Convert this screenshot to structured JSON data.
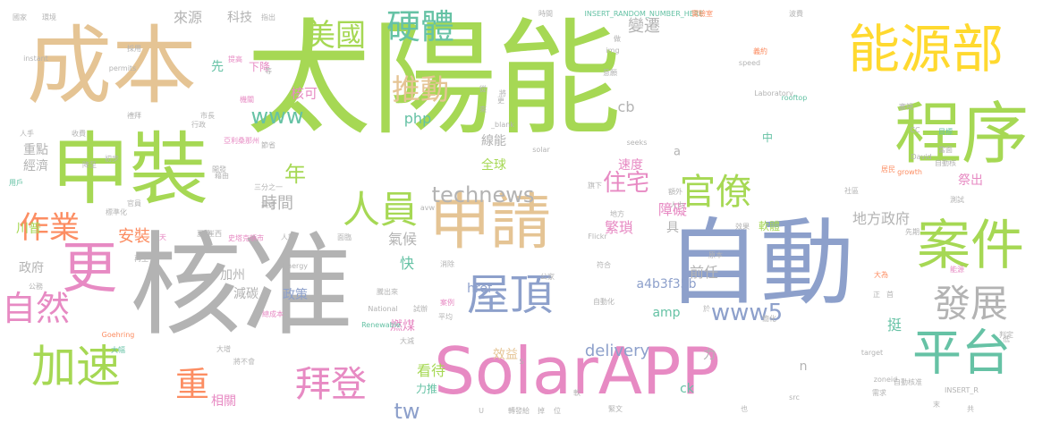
{
  "palette": {
    "green": "#a6d854",
    "gray": "#b3b3b3",
    "tan": "#e5c494",
    "pink": "#e78ac3",
    "blue": "#8da0cb",
    "orange": "#fc8d62",
    "yellow": "#ffd92f",
    "teal": "#66c2a5"
  },
  "words": [
    {
      "text": "太陽能",
      "color": "green",
      "rot": 0
    },
    {
      "text": "核准",
      "color": "gray",
      "rot": 0
    },
    {
      "text": "成本",
      "color": "tan",
      "rot": 0
    },
    {
      "text": "自動",
      "color": "blue",
      "rot": 0
    },
    {
      "text": "程序",
      "color": "green",
      "rot": 0
    },
    {
      "text": "申裝",
      "color": "green",
      "rot": 0
    },
    {
      "text": "SolarAPP",
      "color": "pink",
      "rot": 0
    },
    {
      "text": "能源部",
      "color": "yellow",
      "rot": 0
    },
    {
      "text": "申請",
      "color": "tan",
      "rot": 0
    },
    {
      "text": "更",
      "color": "pink",
      "rot": 0
    },
    {
      "text": "案件",
      "color": "green",
      "rot": 0
    },
    {
      "text": "屋頂",
      "color": "blue",
      "rot": 0
    },
    {
      "text": "平台",
      "color": "teal",
      "rot": 0
    },
    {
      "text": "加速",
      "color": "green",
      "rot": 0
    },
    {
      "text": "人員",
      "color": "green",
      "rot": 0
    },
    {
      "text": "發展",
      "color": "gray",
      "rot": 0
    },
    {
      "text": "自然",
      "color": "pink",
      "rot": 0
    },
    {
      "text": "拜登",
      "color": "pink",
      "rot": 0
    },
    {
      "text": "官僚",
      "color": "green",
      "rot": 0
    },
    {
      "text": "硬體",
      "color": "teal",
      "rot": 0
    },
    {
      "text": "美國",
      "color": "green",
      "rot": 0
    },
    {
      "text": "推動",
      "color": "tan",
      "rot": 0
    },
    {
      "text": "technews",
      "color": "gray",
      "rot": 0
    },
    {
      "text": "www",
      "color": "teal",
      "rot": 0
    },
    {
      "text": "www5",
      "color": "blue",
      "rot": 0
    },
    {
      "text": "重",
      "color": "orange",
      "rot": 0
    },
    {
      "text": "作業",
      "color": "orange",
      "rot": 0
    },
    {
      "text": "住宅",
      "color": "pink",
      "rot": 0
    },
    {
      "text": "年",
      "color": "green",
      "rot": 0
    },
    {
      "text": "時間",
      "color": "gray",
      "rot": 0
    },
    {
      "text": "地方政府",
      "color": "gray",
      "rot": 0
    },
    {
      "text": "變遷",
      "color": "gray",
      "rot": 0
    },
    {
      "text": "來源",
      "color": "gray",
      "rot": 0
    },
    {
      "text": "科技",
      "color": "gray",
      "rot": 0
    },
    {
      "text": "核可",
      "color": "pink",
      "rot": 0
    },
    {
      "text": "下降",
      "color": "pink",
      "rot": 0
    },
    {
      "text": "先",
      "color": "teal",
      "rot": 0
    },
    {
      "text": "php",
      "color": "teal",
      "rot": 0
    },
    {
      "text": "cb",
      "color": "gray",
      "rot": 0
    },
    {
      "text": "線能",
      "color": "gray",
      "rot": 0
    },
    {
      "text": "全球",
      "color": "green",
      "rot": 0
    },
    {
      "text": "速度",
      "color": "pink",
      "rot": 0
    },
    {
      "text": "障礙",
      "color": "pink",
      "rot": 0
    },
    {
      "text": "中",
      "color": "teal",
      "rot": 0
    },
    {
      "text": "a",
      "color": "gray",
      "rot": 0
    },
    {
      "text": "繁瑣",
      "color": "pink",
      "rot": 0
    },
    {
      "text": "具",
      "color": "gray",
      "rot": 0
    },
    {
      "text": "a4b3f35b",
      "color": "blue",
      "rot": 0
    },
    {
      "text": "amp",
      "color": "teal",
      "rot": 0
    },
    {
      "text": "前任",
      "color": "gray",
      "rot": 0
    },
    {
      "text": "挺",
      "color": "teal",
      "rot": 0
    },
    {
      "text": "安裝",
      "color": "orange",
      "rot": 0
    },
    {
      "text": "氣候",
      "color": "gray",
      "rot": 0
    },
    {
      "text": "快",
      "color": "teal",
      "rot": 0
    },
    {
      "text": "href",
      "color": "blue",
      "rot": 0
    },
    {
      "text": "政策",
      "color": "blue",
      "rot": 0
    },
    {
      "text": "燃煤",
      "color": "pink",
      "rot": 0
    },
    {
      "text": "delivery",
      "color": "blue",
      "rot": 0
    },
    {
      "text": "效益",
      "color": "tan",
      "rot": 0
    },
    {
      "text": "力",
      "color": "gray",
      "rot": 0
    },
    {
      "text": "ck",
      "color": "teal",
      "rot": 0
    },
    {
      "text": "n",
      "color": "gray",
      "rot": 0
    },
    {
      "text": "看待",
      "color": "green",
      "rot": 0
    },
    {
      "text": "tw",
      "color": "blue",
      "rot": 0
    },
    {
      "text": "力推",
      "color": "teal",
      "rot": 0
    },
    {
      "text": "加州",
      "color": "gray",
      "rot": 0
    },
    {
      "text": "相關",
      "color": "pink",
      "rot": 0
    },
    {
      "text": "減碳",
      "color": "gray",
      "rot": 0
    },
    {
      "text": "政府",
      "color": "gray",
      "rot": 0
    },
    {
      "text": "川普",
      "color": "green",
      "rot": 0
    },
    {
      "text": "經濟",
      "color": "gray",
      "rot": 0
    },
    {
      "text": "重點",
      "color": "gray",
      "rot": 0
    },
    {
      "text": "軟體",
      "color": "green",
      "rot": 0
    },
    {
      "text": "祭出",
      "color": "pink",
      "rot": 0
    },
    {
      "text": "國家",
      "color": "gray",
      "rot": 0
    },
    {
      "text": "環境",
      "color": "gray",
      "rot": 0
    },
    {
      "text": "等",
      "color": "gray",
      "rot": 0
    },
    {
      "text": "指出",
      "color": "gray",
      "rot": 0
    },
    {
      "text": "時間",
      "color": "gray",
      "rot": 0
    },
    {
      "text": "INSERT_RANDOM_NUMBER_HERE",
      "color": "teal",
      "rot": 0
    },
    {
      "text": "實驗室",
      "color": "orange",
      "rot": 0
    },
    {
      "text": "波費",
      "color": "gray",
      "rot": 0
    },
    {
      "text": "instant",
      "color": "gray",
      "rot": 0
    },
    {
      "text": "採用",
      "color": "gray",
      "rot": 0
    },
    {
      "text": "提高",
      "color": "pink",
      "rot": 0
    },
    {
      "text": "機關",
      "color": "pink",
      "rot": 0
    },
    {
      "text": "img",
      "color": "gray",
      "rot": 0
    },
    {
      "text": "speed",
      "color": "gray",
      "rot": 0
    },
    {
      "text": "義約",
      "color": "orange",
      "rot": 0
    },
    {
      "text": "意願",
      "color": "gray",
      "rot": 0
    },
    {
      "text": "permits",
      "color": "gray",
      "rot": 0
    },
    {
      "text": "Laboratory",
      "color": "gray",
      "rot": 0
    },
    {
      "text": "rooftop",
      "color": "teal",
      "rot": 0
    },
    {
      "text": "審視",
      "color": "gray",
      "rot": 0
    },
    {
      "text": "人手",
      "color": "gray",
      "rot": 0
    },
    {
      "text": "收費",
      "color": "gray",
      "rot": 0
    },
    {
      "text": "禮拜",
      "color": "gray",
      "rot": 0
    },
    {
      "text": "市長",
      "color": "gray",
      "rot": 0
    },
    {
      "text": "亞利桑那州",
      "color": "pink",
      "rot": 0
    },
    {
      "text": "行政",
      "color": "gray",
      "rot": 0
    },
    {
      "text": "節省",
      "color": "gray",
      "rot": 0
    },
    {
      "text": "solar",
      "color": "gray",
      "rot": 0
    },
    {
      "text": "_blank",
      "color": "gray",
      "rot": 0
    },
    {
      "text": "seeks",
      "color": "gray",
      "rot": 0
    },
    {
      "text": "CC",
      "color": "gray",
      "rot": 0
    },
    {
      "text": "目標",
      "color": "teal",
      "rot": 0
    },
    {
      "text": "當面",
      "color": "gray",
      "rot": 0
    },
    {
      "text": "David",
      "color": "gray",
      "rot": 0
    },
    {
      "text": "growth",
      "color": "orange",
      "rot": 0
    },
    {
      "text": "居民",
      "color": "orange",
      "rot": 0
    },
    {
      "text": "自動核",
      "color": "gray",
      "rot": 0
    },
    {
      "text": "降至",
      "color": "gray",
      "rot": 0
    },
    {
      "text": "初步",
      "color": "gray",
      "rot": 0
    },
    {
      "text": "用戶",
      "color": "teal",
      "rot": 0
    },
    {
      "text": "開發",
      "color": "gray",
      "rot": 0
    },
    {
      "text": "藉由",
      "color": "gray",
      "rot": 0
    },
    {
      "text": "旗下",
      "color": "gray",
      "rot": 0
    },
    {
      "text": "標準化",
      "color": "gray",
      "rot": 0
    },
    {
      "text": "官員",
      "color": "gray",
      "rot": 0
    },
    {
      "text": "三分之一",
      "color": "gray",
      "rot": 0
    },
    {
      "text": "高速",
      "color": "gray",
      "rot": 0
    },
    {
      "text": "avw",
      "color": "gray",
      "rot": 0
    },
    {
      "text": "額外",
      "color": "gray",
      "rot": 0
    },
    {
      "text": "社區",
      "color": "gray",
      "rot": 0
    },
    {
      "text": "人力",
      "color": "gray",
      "rot": 0
    },
    {
      "text": "測試",
      "color": "gray",
      "rot": 0
    },
    {
      "text": "地方",
      "color": "gray",
      "rot": 0
    },
    {
      "text": "史塔克頓市",
      "color": "pink",
      "rot": 0
    },
    {
      "text": "人數",
      "color": "gray",
      "rot": 0
    },
    {
      "text": "天",
      "color": "pink",
      "rot": 0
    },
    {
      "text": "夏季",
      "color": "gray",
      "rot": 0
    },
    {
      "text": "崔西",
      "color": "gray",
      "rot": 0
    },
    {
      "text": "面臨",
      "color": "gray",
      "rot": 0
    },
    {
      "text": "Flickr",
      "color": "gray",
      "rot": 0
    },
    {
      "text": "效果",
      "color": "gray",
      "rot": 0
    },
    {
      "text": "先期",
      "color": "gray",
      "rot": 0
    },
    {
      "text": "再生",
      "color": "gray",
      "rot": 0
    },
    {
      "text": "Energy",
      "color": "gray",
      "rot": 0
    },
    {
      "text": "公家",
      "color": "gray",
      "rot": 0
    },
    {
      "text": "符合",
      "color": "gray",
      "rot": 0
    },
    {
      "text": "原本",
      "color": "gray",
      "rot": 0
    },
    {
      "text": "能源",
      "color": "pink",
      "rot": 0
    },
    {
      "text": "公務",
      "color": "gray",
      "rot": 0
    },
    {
      "text": "總成本",
      "color": "pink",
      "rot": 0
    },
    {
      "text": "騰出來",
      "color": "gray",
      "rot": 0
    },
    {
      "text": "試辦",
      "color": "gray",
      "rot": 0
    },
    {
      "text": "National",
      "color": "gray",
      "rot": 0
    },
    {
      "text": "案例",
      "color": "pink",
      "rot": 0
    },
    {
      "text": "消除",
      "color": "gray",
      "rot": 0
    },
    {
      "text": "自動化",
      "color": "gray",
      "rot": 0
    },
    {
      "text": "Renewable",
      "color": "teal",
      "rot": 0
    },
    {
      "text": "平均",
      "color": "gray",
      "rot": 0
    },
    {
      "text": "簡化",
      "color": "gray",
      "rot": 0
    },
    {
      "text": "Goehring",
      "color": "orange",
      "rot": 0
    },
    {
      "text": "大幅",
      "color": "teal",
      "rot": 0
    },
    {
      "text": "大減",
      "color": "gray",
      "rot": 0
    },
    {
      "text": "將不會",
      "color": "gray",
      "rot": 0
    },
    {
      "text": "大增",
      "color": "gray",
      "rot": 0
    },
    {
      "text": "target",
      "color": "gray",
      "rot": 0
    },
    {
      "text": "判定",
      "color": "gray",
      "rot": 0
    },
    {
      "text": "zoneid",
      "color": "gray",
      "rot": 0
    },
    {
      "text": "自動核准",
      "color": "gray",
      "rot": 0
    },
    {
      "text": "INSERT_R",
      "color": "gray",
      "rot": 0
    },
    {
      "text": "src",
      "color": "gray",
      "rot": 0
    },
    {
      "text": "需求",
      "color": "gray",
      "rot": 0
    },
    {
      "text": "緊文",
      "color": "gray",
      "rot": 0
    },
    {
      "text": "位",
      "color": "gray",
      "rot": 0
    },
    {
      "text": "U",
      "color": "gray",
      "rot": 0
    },
    {
      "text": "轉發給",
      "color": "gray",
      "rot": 0
    },
    {
      "text": "掉",
      "color": "gray",
      "rot": 0
    },
    {
      "text": "共",
      "color": "gray",
      "rot": 0
    },
    {
      "text": "末",
      "color": "gray",
      "rot": 0
    },
    {
      "text": "低",
      "color": "gray",
      "rot": 0
    },
    {
      "text": "首",
      "color": "gray",
      "rot": 0
    },
    {
      "text": "大為",
      "color": "orange",
      "rot": 0
    },
    {
      "text": "正",
      "color": "gray",
      "rot": 0
    },
    {
      "text": "於",
      "color": "gray",
      "rot": 0
    },
    {
      "text": "也",
      "color": "gray",
      "rot": 0
    },
    {
      "text": "S",
      "color": "gray",
      "rot": 0
    },
    {
      "text": "軟",
      "color": "gray",
      "rot": 0
    },
    {
      "text": "做",
      "color": "gray",
      "rot": 0
    },
    {
      "text": "更",
      "color": "gray",
      "rot": 0
    },
    {
      "text": "來",
      "color": "gray",
      "rot": 0
    },
    {
      "text": "從",
      "color": "gray",
      "rot": 0
    },
    {
      "text": "將",
      "color": "gray",
      "rot": 0
    }
  ]
}
